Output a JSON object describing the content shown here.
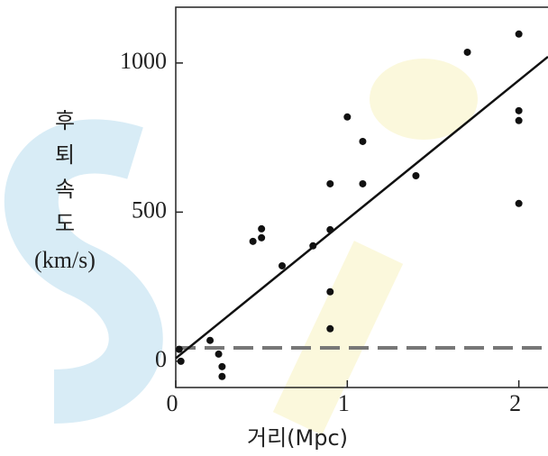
{
  "chart_data": {
    "type": "scatter",
    "x_label": "거리(Mpc)",
    "y_label": [
      "후",
      "퇴",
      "속",
      "도",
      "(km/s)"
    ],
    "xlim": [
      0,
      2.17
    ],
    "ylim": [
      -88,
      1187
    ],
    "xticks": [
      0,
      1,
      2
    ],
    "yticks": [
      0,
      500,
      1000
    ],
    "color": "#111111",
    "x": [
      0.02,
      0.03,
      0.2,
      0.25,
      0.27,
      0.27,
      0.45,
      0.5,
      0.5,
      0.62,
      0.8,
      0.9,
      0.9,
      0.9,
      0.9,
      1.0,
      1.09,
      1.09,
      1.4,
      1.7,
      2.0,
      2.0,
      2.0,
      2.0
    ],
    "values": [
      40,
      0,
      70,
      24,
      -18,
      -51,
      402,
      444,
      414,
      320,
      387,
      441,
      595,
      233,
      109,
      819,
      737,
      595,
      622,
      1036,
      1097,
      840,
      807,
      529
    ],
    "fit_line": {
      "x": [
        0,
        2.17
      ],
      "values": [
        10,
        1021
      ],
      "color": "#111111"
    },
    "reference_line": {
      "x": [
        0,
        2.17
      ],
      "values": [
        45,
        45
      ],
      "color": "#777777",
      "dashed": true
    }
  }
}
